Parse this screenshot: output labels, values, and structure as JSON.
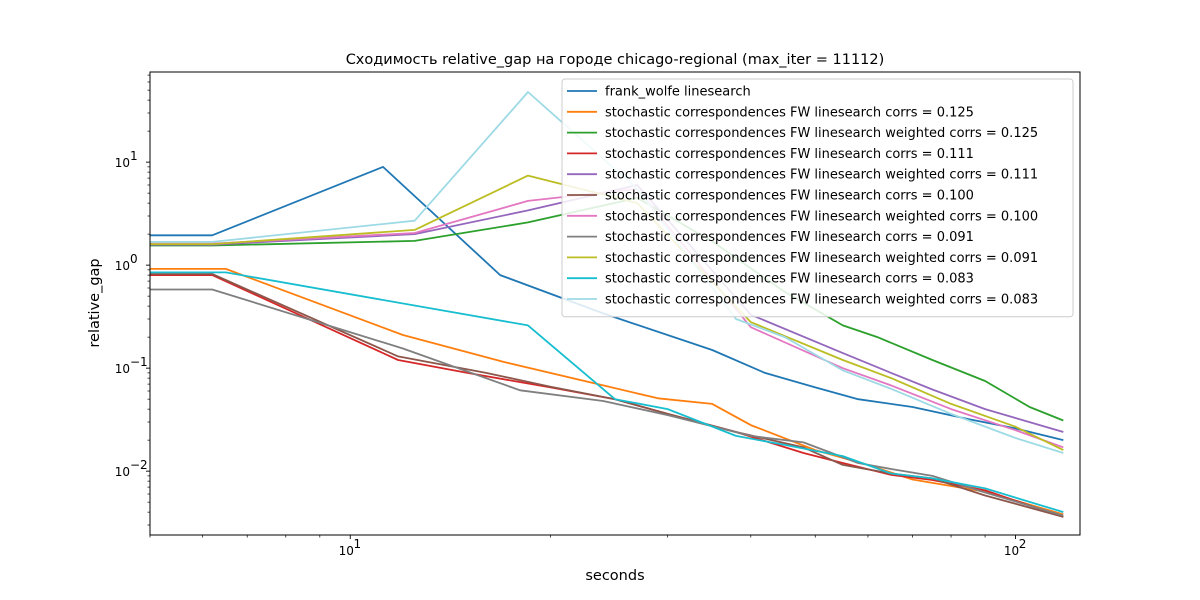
{
  "chart_data": {
    "type": "line",
    "title": "Сходимость relative_gap на городе chicago-regional  (max_iter = 11112)",
    "xlabel": "seconds",
    "ylabel": "relative_gap",
    "xscale": "log",
    "yscale": "log",
    "xlim": [
      5.0,
      125
    ],
    "ylim": [
      0.0024,
      75
    ],
    "x_ticks": [
      {
        "value": 10,
        "base": "10",
        "exp": "1"
      },
      {
        "value": 100,
        "base": "10",
        "exp": "2"
      }
    ],
    "y_ticks": [
      {
        "value": 0.01,
        "base": "10",
        "exp": "−2"
      },
      {
        "value": 0.1,
        "base": "10",
        "exp": "−1"
      },
      {
        "value": 1,
        "base": "10",
        "exp": "0"
      },
      {
        "value": 10,
        "base": "10",
        "exp": "1"
      }
    ],
    "legend_position": "top-right",
    "grid": false,
    "series": [
      {
        "name": "frank_wolfe linesearch",
        "color": "#1f77b4",
        "x": [
          5.0,
          6.2,
          11.2,
          16.8,
          24,
          35,
          42,
          50,
          58,
          70,
          85,
          100,
          118
        ],
        "y": [
          1.95,
          1.95,
          9.0,
          0.8,
          0.34,
          0.15,
          0.09,
          0.065,
          0.05,
          0.042,
          0.032,
          0.026,
          0.02
        ]
      },
      {
        "name": "stochastic correspondences FW linesearch corrs = 0.125",
        "color": "#ff7f0e",
        "x": [
          5.0,
          6.5,
          12,
          17,
          24,
          29,
          35,
          40,
          50,
          60,
          70,
          90,
          118
        ],
        "y": [
          0.92,
          0.92,
          0.21,
          0.115,
          0.068,
          0.051,
          0.045,
          0.028,
          0.016,
          0.0115,
          0.0083,
          0.0063,
          0.0038
        ]
      },
      {
        "name": "stochastic correspondences FW linesearch weighted corrs = 0.125",
        "color": "#2ca02c",
        "x": [
          5.0,
          6.2,
          12.5,
          18.5,
          27,
          35,
          45,
          55,
          62,
          75,
          90,
          105,
          118
        ],
        "y": [
          1.55,
          1.55,
          1.72,
          2.6,
          4.5,
          1.7,
          0.55,
          0.26,
          0.2,
          0.12,
          0.075,
          0.042,
          0.031
        ]
      },
      {
        "name": "stochastic correspondences FW linesearch corrs = 0.111",
        "color": "#d62728",
        "x": [
          5.0,
          6.2,
          11.8,
          15,
          20,
          25,
          30,
          38,
          48,
          55,
          65,
          75,
          90,
          118
        ],
        "y": [
          0.8,
          0.8,
          0.12,
          0.09,
          0.065,
          0.05,
          0.036,
          0.024,
          0.015,
          0.012,
          0.0092,
          0.0082,
          0.0065,
          0.0036
        ]
      },
      {
        "name": "stochastic correspondences FW linesearch weighted corrs = 0.111",
        "color": "#9467bd",
        "x": [
          5.0,
          6.2,
          12.5,
          18.5,
          27,
          40,
          55,
          65,
          75,
          90,
          118
        ],
        "y": [
          1.58,
          1.58,
          2.0,
          3.4,
          6.0,
          0.33,
          0.14,
          0.09,
          0.062,
          0.04,
          0.024
        ]
      },
      {
        "name": "stochastic correspondences FW linesearch corrs = 0.100",
        "color": "#8c564b",
        "x": [
          5.0,
          6.2,
          11.8,
          16,
          20,
          25,
          30,
          38,
          48,
          55,
          65,
          75,
          90,
          118
        ],
        "y": [
          0.82,
          0.82,
          0.13,
          0.09,
          0.066,
          0.05,
          0.036,
          0.024,
          0.017,
          0.0115,
          0.0095,
          0.0085,
          0.0058,
          0.0036
        ]
      },
      {
        "name": "stochastic correspondences FW linesearch weighted corrs = 0.100",
        "color": "#e377c2",
        "x": [
          5.0,
          6.2,
          12.5,
          18.5,
          27,
          40,
          55,
          65,
          80,
          100,
          118
        ],
        "y": [
          1.62,
          1.62,
          2.05,
          4.2,
          5.5,
          0.25,
          0.1,
          0.068,
          0.04,
          0.025,
          0.017
        ]
      },
      {
        "name": "stochastic correspondences FW linesearch corrs = 0.091",
        "color": "#7f7f7f",
        "x": [
          5.0,
          6.2,
          12,
          18,
          24,
          30,
          40,
          48,
          58,
          65,
          75,
          90,
          118
        ],
        "y": [
          0.58,
          0.58,
          0.155,
          0.061,
          0.048,
          0.035,
          0.022,
          0.019,
          0.012,
          0.0105,
          0.009,
          0.0062,
          0.0037
        ]
      },
      {
        "name": "stochastic correspondences FW linesearch weighted corrs = 0.091",
        "color": "#bcbd22",
        "x": [
          5.0,
          6.2,
          12.5,
          18.5,
          27,
          40,
          55,
          65,
          80,
          100,
          118
        ],
        "y": [
          1.6,
          1.6,
          2.2,
          7.4,
          4.0,
          0.28,
          0.12,
          0.08,
          0.045,
          0.027,
          0.016
        ]
      },
      {
        "name": "stochastic correspondences FW linesearch corrs = 0.083",
        "color": "#17becf",
        "x": [
          5.0,
          6.5,
          18.5,
          25,
          30,
          38,
          45,
          55,
          65,
          75,
          90,
          118
        ],
        "y": [
          0.85,
          0.85,
          0.26,
          0.05,
          0.04,
          0.022,
          0.018,
          0.014,
          0.0095,
          0.0085,
          0.0068,
          0.004
        ]
      },
      {
        "name": "stochastic correspondences FW linesearch weighted corrs = 0.083",
        "color": "#9edae5",
        "x": [
          5.0,
          6.2,
          12.5,
          18.5,
          27,
          38,
          45,
          55,
          65,
          80,
          100,
          118
        ],
        "y": [
          1.68,
          1.68,
          2.7,
          48,
          5.5,
          0.3,
          0.2,
          0.095,
          0.063,
          0.036,
          0.021,
          0.015
        ]
      }
    ]
  }
}
